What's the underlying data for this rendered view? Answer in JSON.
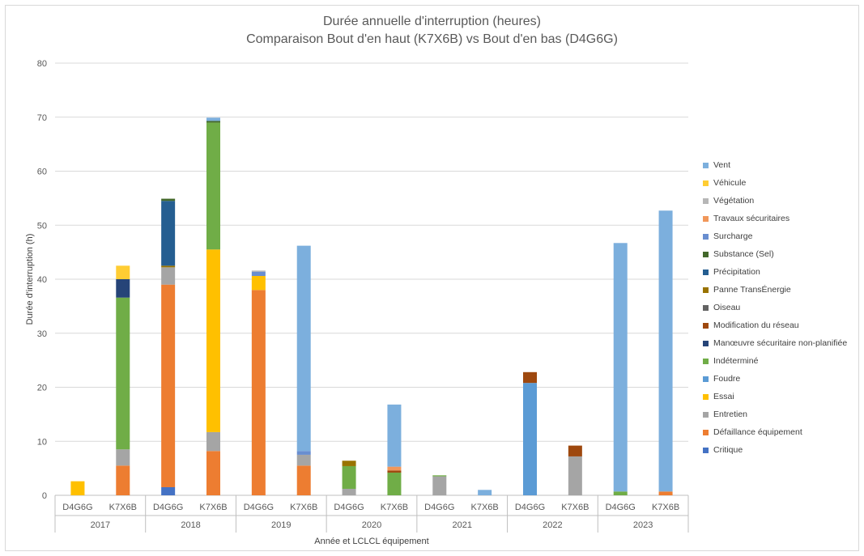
{
  "chart_data": {
    "type": "bar",
    "stacked": true,
    "title": "Durée annuelle d'interruption (heures)",
    "subtitle": "Comparaison Bout d'en haut (K7X6B) vs Bout d'en bas (D4G6G)",
    "xlabel": "Année et LCLCL équipement",
    "ylabel": "Durée d'interruption (h)",
    "ylim": [
      0,
      80
    ],
    "y_ticks": [
      0,
      10,
      20,
      30,
      40,
      50,
      60,
      70,
      80
    ],
    "grid": true,
    "legend_position": "right",
    "groups": [
      {
        "year": "2017",
        "categories": [
          "D4G6G",
          "K7X6B"
        ]
      },
      {
        "year": "2018",
        "categories": [
          "D4G6G",
          "K7X6B"
        ]
      },
      {
        "year": "2019",
        "categories": [
          "D4G6G",
          "K7X6B"
        ]
      },
      {
        "year": "2020",
        "categories": [
          "D4G6G",
          "K7X6B"
        ]
      },
      {
        "year": "2021",
        "categories": [
          "D4G6G",
          "K7X6B"
        ]
      },
      {
        "year": "2022",
        "categories": [
          "D4G6G",
          "K7X6B"
        ]
      },
      {
        "year": "2023",
        "categories": [
          "D4G6G",
          "K7X6B"
        ]
      }
    ],
    "series": [
      {
        "name": "Critique",
        "color": "#4472c4",
        "values": [
          0,
          0,
          1.5,
          0,
          0,
          0,
          0,
          0,
          0,
          0,
          0,
          0,
          0,
          0
        ]
      },
      {
        "name": "Défaillance équipement",
        "color": "#ed7d31",
        "values": [
          0,
          5.5,
          37.5,
          8.2,
          38,
          5.5,
          0,
          0,
          0,
          0,
          0,
          0,
          0,
          0.7
        ]
      },
      {
        "name": "Entretien",
        "color": "#a5a5a5",
        "values": [
          0,
          3,
          3.2,
          3.5,
          0,
          2,
          1.2,
          0,
          3.5,
          0,
          0,
          7.2,
          0,
          0
        ]
      },
      {
        "name": "Essai",
        "color": "#ffc000",
        "values": [
          2.6,
          0,
          0,
          33.8,
          2.6,
          0,
          0,
          0,
          0,
          0,
          0,
          0,
          0,
          0
        ]
      },
      {
        "name": "Foudre",
        "color": "#5b9bd5",
        "values": [
          0,
          0,
          0,
          0,
          0,
          0,
          0,
          0,
          0,
          0,
          20.8,
          0,
          0,
          0
        ]
      },
      {
        "name": "Indéterminé",
        "color": "#70ad47",
        "values": [
          0,
          28.1,
          0,
          23.5,
          0,
          0,
          4.2,
          4.2,
          0.2,
          0,
          0,
          0,
          0.7,
          0
        ]
      },
      {
        "name": "Manœuvre sécuritaire non-planifiée",
        "color": "#264478",
        "values": [
          0,
          3.4,
          0,
          0,
          0,
          0,
          0,
          0,
          0,
          0,
          0,
          0,
          0,
          0
        ]
      },
      {
        "name": "Modification du réseau",
        "color": "#9e480e",
        "values": [
          0,
          0,
          0,
          0,
          0,
          0,
          0,
          0.4,
          0,
          0,
          2,
          2,
          0,
          0
        ]
      },
      {
        "name": "Oiseau",
        "color": "#636363",
        "values": [
          0,
          0,
          0,
          0,
          0,
          0,
          0,
          0,
          0,
          0,
          0,
          0,
          0,
          0
        ]
      },
      {
        "name": "Panne TransÉnergie",
        "color": "#997300",
        "values": [
          0,
          0,
          0.3,
          0,
          0,
          0,
          1,
          0,
          0,
          0,
          0,
          0,
          0,
          0
        ]
      },
      {
        "name": "Précipitation",
        "color": "#255e91",
        "values": [
          0,
          0,
          12,
          0,
          0,
          0,
          0,
          0,
          0,
          0,
          0,
          0,
          0,
          0
        ]
      },
      {
        "name": "Substance (Sel)",
        "color": "#43682b",
        "values": [
          0,
          0,
          0.4,
          0.3,
          0,
          0,
          0,
          0,
          0,
          0,
          0,
          0,
          0,
          0
        ]
      },
      {
        "name": "Surcharge",
        "color": "#698ed0",
        "values": [
          0,
          0,
          0,
          0,
          0.8,
          0.7,
          0,
          0,
          0,
          0,
          0,
          0,
          0,
          0
        ]
      },
      {
        "name": "Travaux sécuritaires",
        "color": "#f1975a",
        "values": [
          0,
          0,
          0,
          0,
          0,
          0,
          0,
          0.7,
          0,
          0,
          0,
          0,
          0,
          0
        ]
      },
      {
        "name": "Végétation",
        "color": "#b7b7b7",
        "values": [
          0,
          0,
          0,
          0,
          0.2,
          0,
          0,
          0,
          0,
          0,
          0,
          0,
          0,
          0
        ]
      },
      {
        "name": "Véhicule",
        "color": "#ffcd33",
        "values": [
          0,
          2.5,
          0,
          0,
          0,
          0,
          0,
          0,
          0,
          0,
          0,
          0,
          0,
          0
        ]
      },
      {
        "name": "Vent",
        "color": "#7cafdd",
        "values": [
          0,
          0,
          0,
          0.6,
          0,
          38,
          0,
          11.5,
          0,
          1,
          0,
          0,
          46,
          52
        ]
      }
    ]
  }
}
